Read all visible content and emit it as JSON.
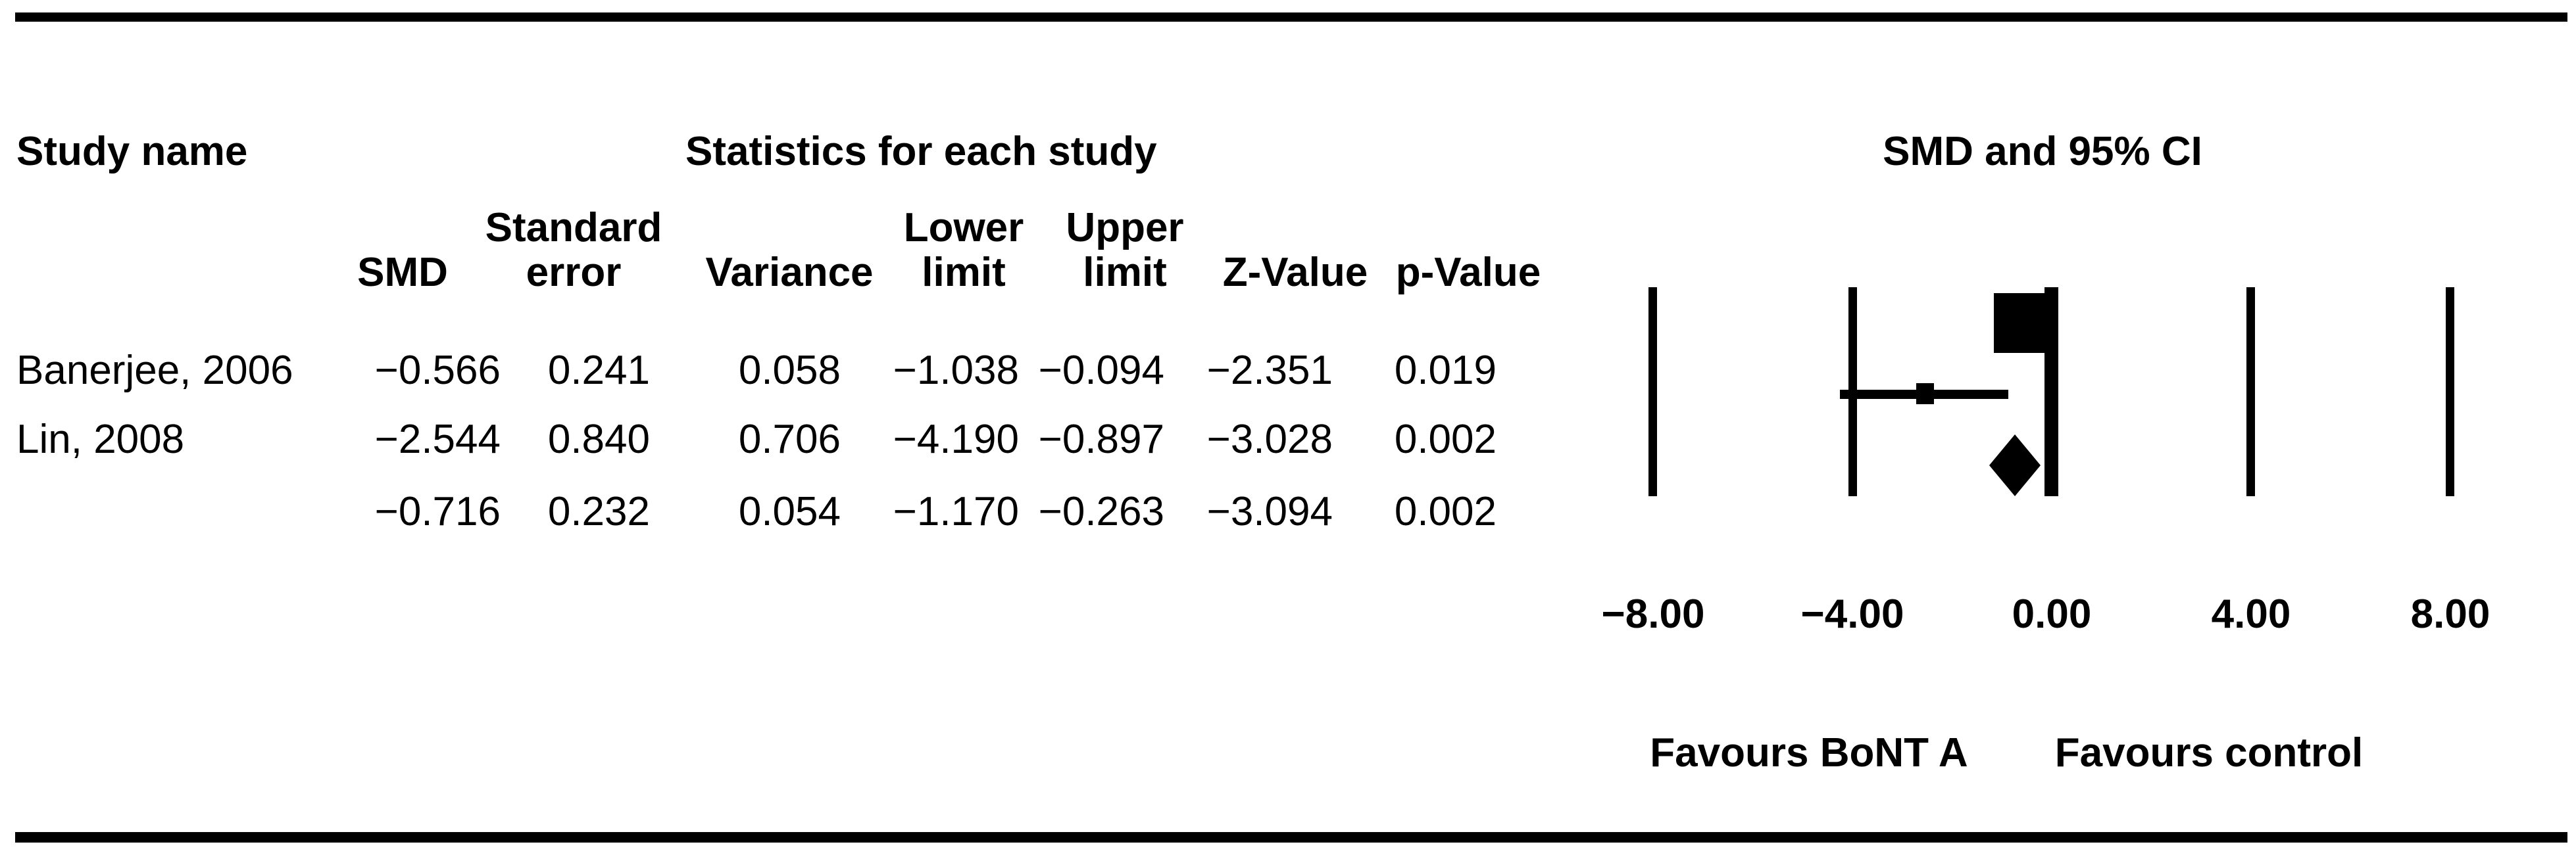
{
  "figure": {
    "table": {
      "study_col_title": "Study name",
      "stats_title": "Statistics for each study",
      "headers_line1": {
        "standard": "Standard",
        "lower": "Lower",
        "upper": "Upper"
      },
      "headers_line2": {
        "smd": "SMD",
        "error": "error",
        "variance": "Variance",
        "lower_limit": "limit",
        "upper_limit": "limit",
        "z_value": "Z-Value",
        "p_value": "p-Value"
      },
      "rows": [
        {
          "study": "Banerjee, 2006",
          "smd": "−0.566",
          "se": "0.241",
          "variance": "0.058",
          "lower": "−1.038",
          "upper": "−0.094",
          "z": "−2.351",
          "p": "0.019"
        },
        {
          "study": "Lin, 2008",
          "smd": "−2.544",
          "se": "0.840",
          "variance": "0.706",
          "lower": "−4.190",
          "upper": "−0.897",
          "z": "−3.028",
          "p": "0.002"
        },
        {
          "study": "",
          "smd": "−0.716",
          "se": "0.232",
          "variance": "0.054",
          "lower": "−1.170",
          "upper": "−0.263",
          "z": "−3.094",
          "p": "0.002"
        }
      ]
    },
    "plot": {
      "title": "SMD and 95% CI",
      "axis_ticks": [
        "−8.00",
        "−4.00",
        "0.00",
        "4.00",
        "8.00"
      ],
      "favours_left": "Favours BoNT A",
      "favours_right": "Favours control",
      "marker_color": "#000000",
      "background_color": "#ffffff"
    }
  },
  "chart_data": {
    "type": "forest",
    "title": "SMD and 95% CI",
    "x_axis": {
      "ticks": [
        -8.0,
        -4.0,
        0.0,
        4.0,
        8.0
      ],
      "xlim": [
        -8.0,
        8.0
      ],
      "zero_line": 0.0
    },
    "footer_labels": {
      "left_of_zero": "Favours BoNT A",
      "right_of_zero": "Favours control"
    },
    "studies": [
      {
        "name": "Banerjee, 2006",
        "smd": -0.566,
        "standard_error": 0.241,
        "variance": 0.058,
        "lower_limit": -1.038,
        "upper_limit": -0.094,
        "z_value": -2.351,
        "p_value": 0.019,
        "marker": "square-large"
      },
      {
        "name": "Lin, 2008",
        "smd": -2.544,
        "standard_error": 0.84,
        "variance": 0.706,
        "lower_limit": -4.19,
        "upper_limit": -0.897,
        "z_value": -3.028,
        "p_value": 0.002,
        "marker": "square-small"
      },
      {
        "name": "",
        "smd": -0.716,
        "standard_error": 0.232,
        "variance": 0.054,
        "lower_limit": -1.17,
        "upper_limit": -0.263,
        "z_value": -3.094,
        "p_value": 0.002,
        "marker": "diamond"
      }
    ]
  }
}
